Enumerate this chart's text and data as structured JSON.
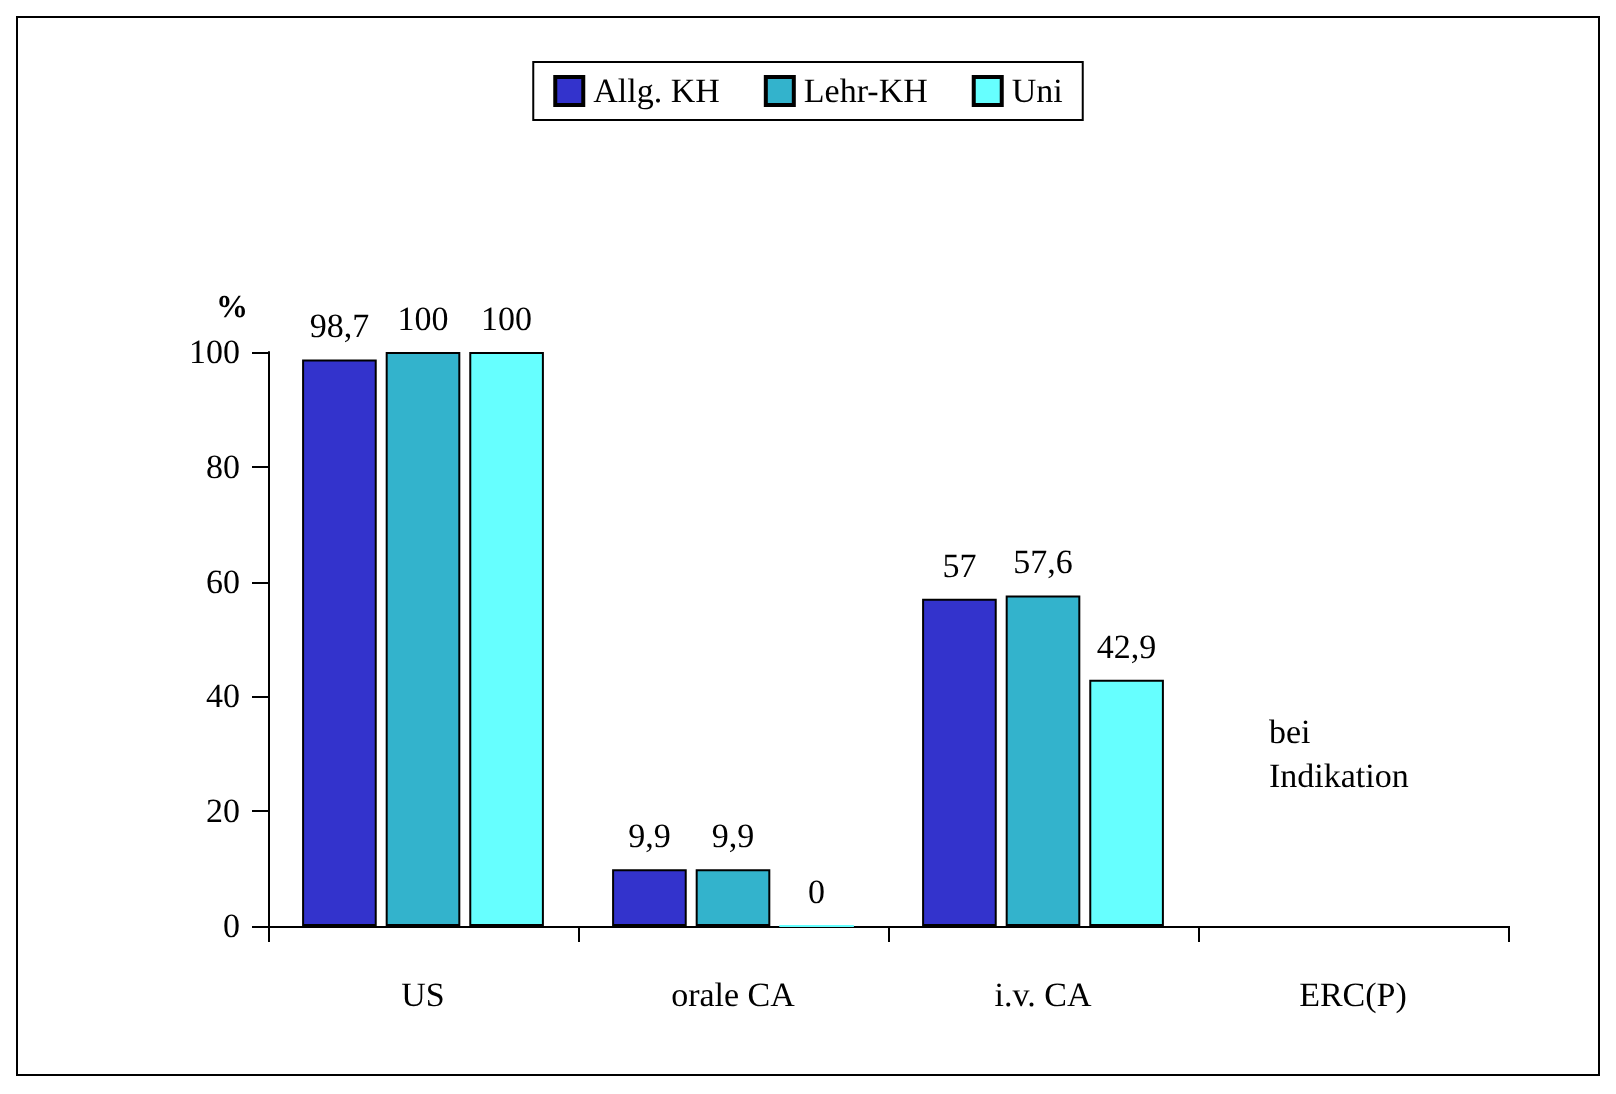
{
  "chart_data": {
    "type": "bar",
    "ylabel": "%",
    "categories": [
      "US",
      "orale CA",
      "i.v. CA",
      "ERC(P)"
    ],
    "series": [
      {
        "name": "Allg. KH",
        "color": "#3333cc",
        "values": [
          98.7,
          9.9,
          57,
          null
        ],
        "value_labels": [
          "98,7",
          "9,9",
          "57",
          null
        ]
      },
      {
        "name": "Lehr-KH",
        "color": "#33b3cc",
        "values": [
          100,
          9.9,
          57.6,
          null
        ],
        "value_labels": [
          "100",
          "9,9",
          "57,6",
          null
        ]
      },
      {
        "name": "Uni",
        "color": "#66ffff",
        "values": [
          100,
          0,
          42.9,
          null
        ],
        "value_labels": [
          "100",
          "0",
          "42,9",
          null
        ]
      }
    ],
    "ylim": [
      0,
      100
    ],
    "yticks": [
      0,
      20,
      40,
      60,
      80,
      100
    ],
    "grid": false,
    "legend": "top",
    "annotations": [
      "bei Indikation"
    ]
  }
}
